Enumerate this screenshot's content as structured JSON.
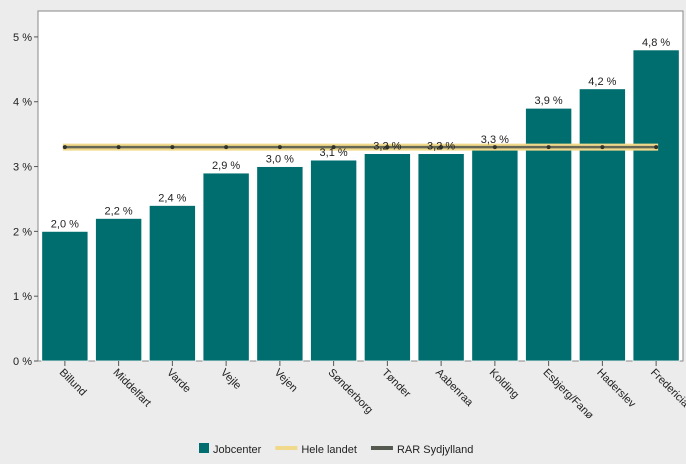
{
  "chart_data": {
    "type": "bar",
    "categories": [
      "Billund",
      "Middelfart",
      "Varde",
      "Vejle",
      "Vejen",
      "Sønderborg",
      "Tønder",
      "Aabenraa",
      "Kolding",
      "Esbjerg/Fanø",
      "Haderslev",
      "Fredericia"
    ],
    "series": [
      {
        "name": "Jobcenter",
        "type": "bar",
        "color": "#006e6e",
        "values": [
          2.0,
          2.2,
          2.4,
          2.9,
          3.0,
          3.1,
          3.2,
          3.2,
          3.3,
          3.9,
          4.2,
          4.8
        ],
        "data_labels": [
          "2,0 %",
          "2,2 %",
          "2,4 %",
          "2,9 %",
          "3,0 %",
          "3,1 %",
          "3,2 %",
          "3,2 %",
          "3,3 %",
          "3,9 %",
          "4,2 %",
          "4,8 %"
        ]
      },
      {
        "name": "Hele landet",
        "type": "line",
        "color": "#f0d98a",
        "value": 3.3
      },
      {
        "name": "RAR Sydjylland",
        "type": "line",
        "color": "#555a50",
        "value": 3.3
      }
    ],
    "ylim": [
      0,
      5.4
    ],
    "yticks": [
      0,
      1,
      2,
      3,
      4,
      5
    ],
    "ytick_labels": [
      "0 %",
      "1 %",
      "2 %",
      "3 %",
      "4 %",
      "5 %"
    ],
    "grid": false,
    "legend_position": "bottom"
  }
}
